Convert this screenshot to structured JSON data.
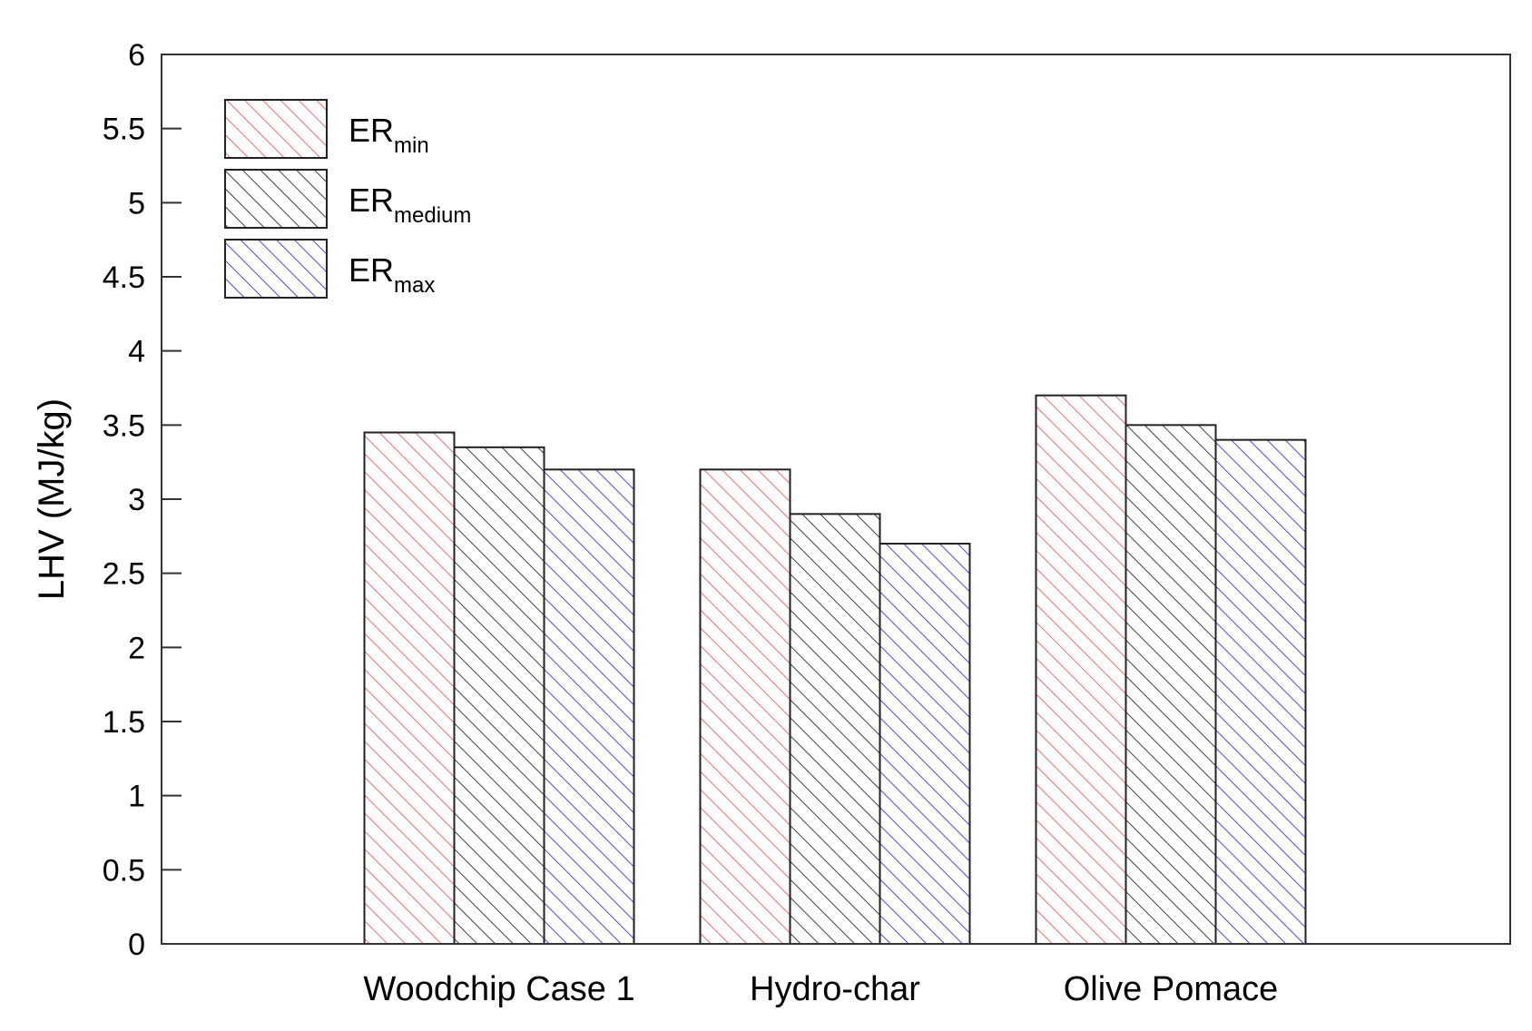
{
  "chart_data": {
    "type": "bar",
    "title": "",
    "xlabel": "",
    "ylabel": "LHV (MJ/kg)",
    "ylim": [
      0,
      6
    ],
    "yticks": [
      "0",
      "0.5",
      "1",
      "1.5",
      "2",
      "2.5",
      "3",
      "3.5",
      "4",
      "4.5",
      "5",
      "5.5",
      "6"
    ],
    "categories": [
      "Woodchip Case 1",
      "Hydro-char",
      "Olive Pomace"
    ],
    "series": [
      {
        "name": "ERmin",
        "label_main": "ER",
        "label_sub": "min",
        "color": "#f07070",
        "values": [
          3.45,
          3.2,
          3.7
        ]
      },
      {
        "name": "ERmedium",
        "label_main": "ER",
        "label_sub": "medium",
        "color": "#404040",
        "values": [
          3.35,
          2.9,
          3.5
        ]
      },
      {
        "name": "ERmax",
        "label_main": "ER",
        "label_sub": "max",
        "color": "#4a4af0",
        "values": [
          3.2,
          2.7,
          3.4
        ]
      }
    ],
    "grid": false,
    "legend_position": "top-left",
    "fill": "diagonal-hatch"
  }
}
